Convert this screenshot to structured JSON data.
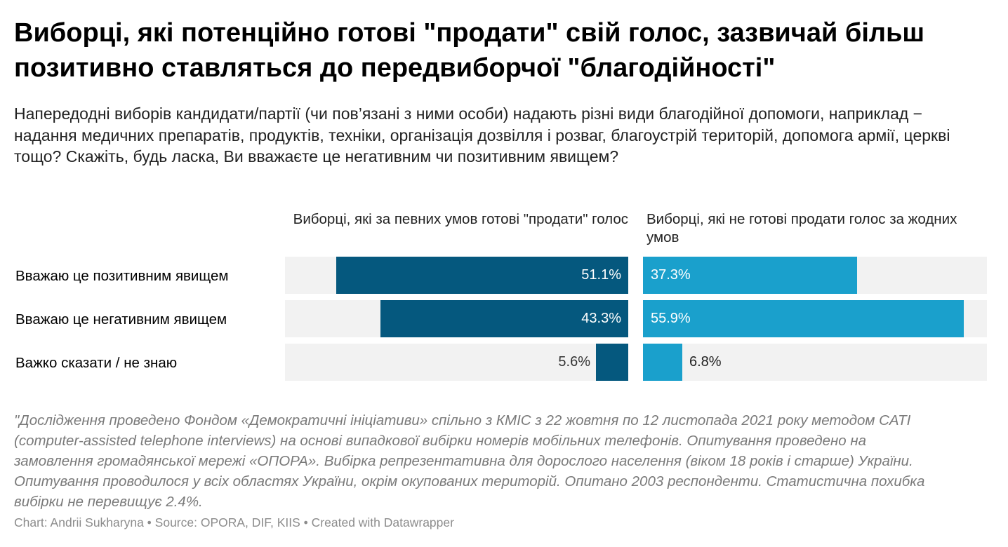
{
  "chart_data": {
    "type": "bar",
    "title": "Виборці, які потенційно готові \"продати\" свій голос, зазвичай більш позитивно ставляться до передвиборчої \"благодійності\"",
    "subtitle": "Напередодні виборів кандидати/партії (чи пов’язані з ними особи) надають різні види благодійної допомоги, наприклад − надання медичних препаратів, продуктів, техніки, організація дозвілля і розваг, благоустрій територій, допомога армії, церкві тощо? Скажіть, будь ласка, Ви вважаєте це негативним чи позитивним явищем?",
    "categories": [
      "Вважаю це позитивним явищем",
      "Вважаю це негативним явищем",
      "Важко сказати / не знаю"
    ],
    "series": [
      {
        "name": "Виборці, які за певних умов готові \"продати\" голос",
        "values": [
          51.1,
          43.3,
          5.6
        ],
        "labels": [
          "51.1%",
          "43.3%",
          "5.6%"
        ],
        "color": "#05587e"
      },
      {
        "name": "Виборці, які не готові продати голос за жодних умов",
        "values": [
          37.3,
          55.9,
          6.8
        ],
        "labels": [
          "37.3%",
          "55.9%",
          "6.8%"
        ],
        "color": "#1aa0cc"
      }
    ],
    "xlim": [
      0,
      60
    ],
    "track_color": "#f2f2f2",
    "footnote": "\"Дослідження проведено Фондом «Демократичні ініціативи» спільно з КМІС з 22 жовтня по 12 листопада 2021 року методом CATI (computer-assisted telephone interviews) на основі випадкової вибірки номерів мобільних телефонів. Опитування проведено на замовлення громадянської мережі «ОПОРА». Вибірка репрезентативна для дорослого населення (віком 18 років і старше) України. Опитування проводилося у всіх областях України, окрім окупованих територій. Опитано 2003 респонденти. Статистична похибка вибірки не перевищує 2.4%.",
    "credit": "Chart: Andrii Sukharyna • Source: OPORA, DIF, KIIS • Created with Datawrapper"
  }
}
